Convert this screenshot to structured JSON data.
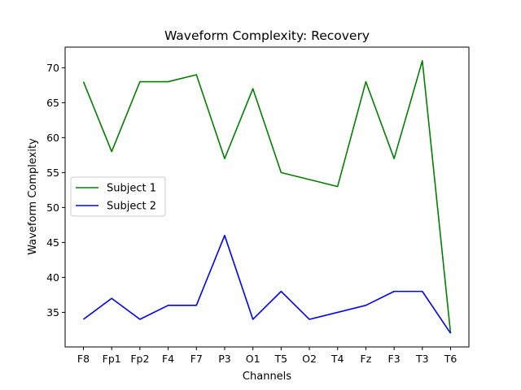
{
  "chart_data": {
    "type": "line",
    "title": "Waveform Complexity: Recovery",
    "xlabel": "Channels",
    "ylabel": "Waveform Complexity",
    "categories": [
      "F8",
      "Fp1",
      "Fp2",
      "F4",
      "F7",
      "P3",
      "O1",
      "T5",
      "O2",
      "T4",
      "Fz",
      "F3",
      "T3",
      "T6"
    ],
    "ylim": [
      30.05,
      72.95
    ],
    "yticks": [
      35,
      40,
      45,
      50,
      55,
      60,
      65,
      70
    ],
    "grid": false,
    "legend_position": "center-left",
    "series": [
      {
        "name": "Subject 1",
        "color": "#008000",
        "values": [
          68,
          58,
          68,
          68,
          69,
          57,
          67,
          55,
          54,
          53,
          68,
          57,
          71,
          32
        ]
      },
      {
        "name": "Subject 2",
        "color": "#0000ff",
        "values": [
          34,
          37,
          34,
          36,
          36,
          46,
          34,
          38,
          34,
          35,
          36,
          38,
          38,
          32
        ]
      }
    ]
  }
}
